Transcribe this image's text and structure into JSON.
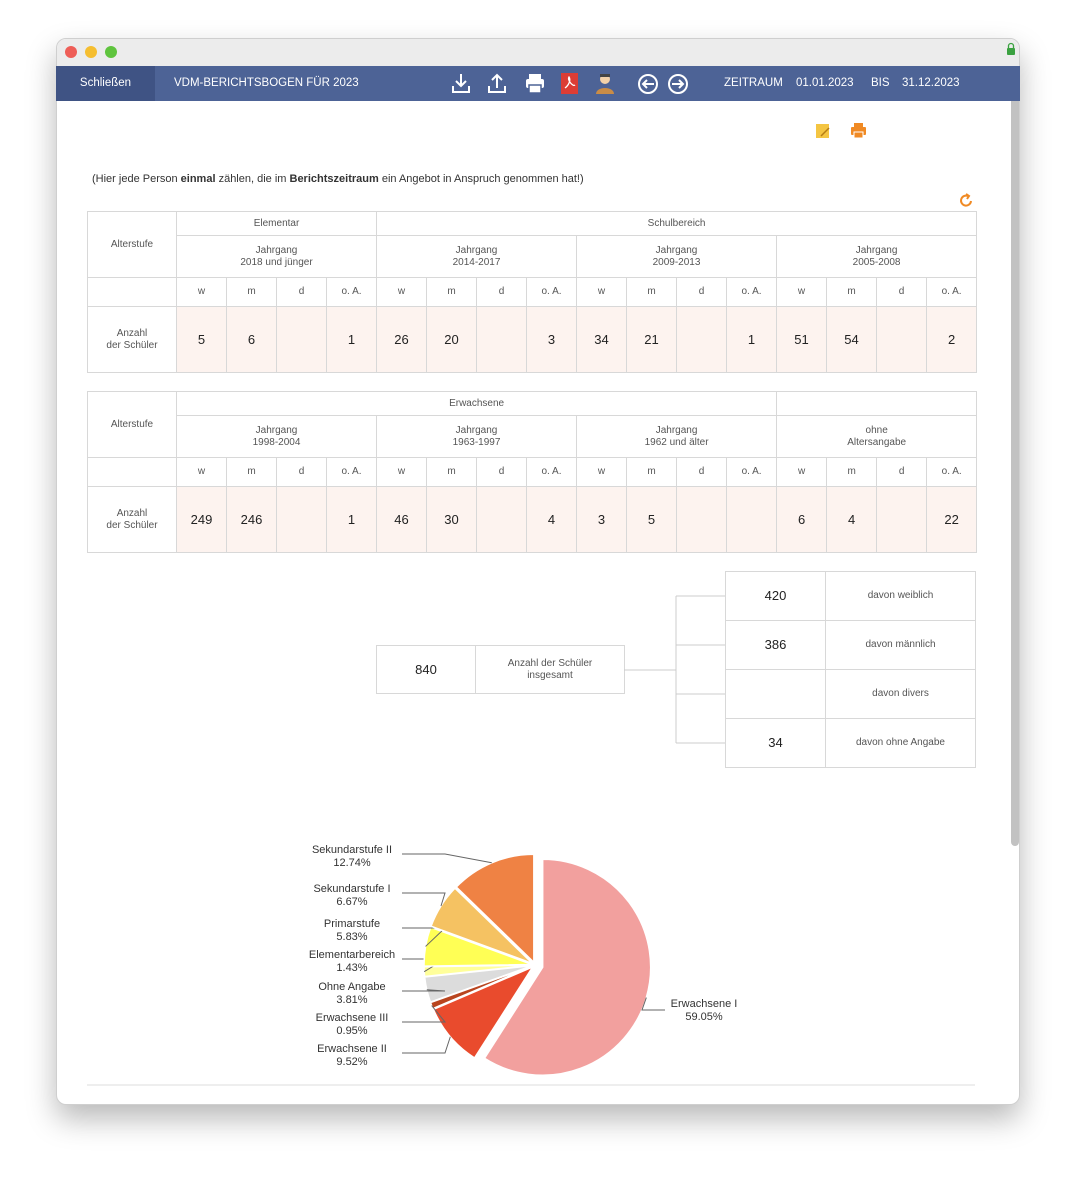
{
  "toolbar": {
    "close": "Schließen",
    "title": "VDM-BERICHTSBOGEN FÜR 2023",
    "period_label": "ZEITRAUM",
    "from": "01.01.2023",
    "to_label": "BIS",
    "to": "31.12.2023"
  },
  "note": {
    "parts": [
      {
        "text": "(Hier jede Person "
      },
      {
        "text": "einmal",
        "bold": true
      },
      {
        "text": " zählen, die im "
      },
      {
        "text": "Berichtszeitraum",
        "bold": true
      },
      {
        "text": " ein Angebot in Anspruch genommen hat!)"
      }
    ]
  },
  "tables": [
    {
      "row_label": "Alterstufe",
      "subheaders": [
        "w",
        "m",
        "d",
        "o. A."
      ],
      "data_label": [
        "Anzahl",
        "der Schüler"
      ],
      "groups": [
        {
          "label": "Elementar",
          "cohorts": [
            {
              "lines": [
                "Jahrgang",
                "2018 und jünger"
              ],
              "values": [
                5,
                6,
                null,
                1
              ]
            }
          ]
        },
        {
          "label": "Schulbereich",
          "cohorts": [
            {
              "lines": [
                "Jahrgang",
                "2014-2017"
              ],
              "values": [
                26,
                20,
                null,
                3
              ]
            },
            {
              "lines": [
                "Jahrgang",
                "2009-2013"
              ],
              "values": [
                34,
                21,
                null,
                1
              ]
            },
            {
              "lines": [
                "Jahrgang",
                "2005-2008"
              ],
              "values": [
                51,
                54,
                null,
                2
              ]
            }
          ]
        }
      ]
    },
    {
      "row_label": "Alterstufe",
      "subheaders": [
        "w",
        "m",
        "d",
        "o. A."
      ],
      "data_label": [
        "Anzahl",
        "der Schüler"
      ],
      "groups": [
        {
          "label": "Erwachsene",
          "cohorts": [
            {
              "lines": [
                "Jahrgang",
                "1998-2004"
              ],
              "values": [
                249,
                246,
                null,
                1
              ]
            },
            {
              "lines": [
                "Jahrgang",
                "1963-1997"
              ],
              "values": [
                46,
                30,
                null,
                4
              ]
            },
            {
              "lines": [
                "Jahrgang",
                "1962 und älter"
              ],
              "values": [
                3,
                5,
                null,
                null
              ]
            }
          ]
        },
        {
          "label": null,
          "cohorts": [
            {
              "lines": [
                "ohne",
                "Altersangabe"
              ],
              "values": [
                6,
                4,
                null,
                22
              ]
            }
          ]
        }
      ]
    }
  ],
  "summary": {
    "total": 840,
    "total_label": [
      "Anzahl der Schüler",
      "insgesamt"
    ],
    "breakdown": [
      {
        "value": 420,
        "label": "davon weiblich"
      },
      {
        "value": 386,
        "label": "davon männlich"
      },
      {
        "value": null,
        "label": "davon divers"
      },
      {
        "value": 34,
        "label": "davon ohne Angabe"
      }
    ]
  },
  "chart_data": {
    "type": "pie",
    "categories": [
      "Erwachsene I",
      "Erwachsene II",
      "Erwachsene III",
      "Ohne Angabe",
      "Elementarbereich",
      "Primarstufe",
      "Sekundarstufe I",
      "Sekundarstufe II"
    ],
    "values": [
      59.05,
      9.52,
      0.95,
      3.81,
      1.43,
      5.83,
      6.67,
      12.74
    ],
    "value_labels": [
      "59.05%",
      "9.52%",
      "0.95%",
      "3.81%",
      "1.43%",
      "5.83%",
      "6.67%",
      "12.74%"
    ],
    "colors": [
      "#f2a09e",
      "#e94b2d",
      "#b9451f",
      "#dcdcdc",
      "#ffff9a",
      "#ffff55",
      "#f5c262",
      "#ef8244"
    ]
  }
}
